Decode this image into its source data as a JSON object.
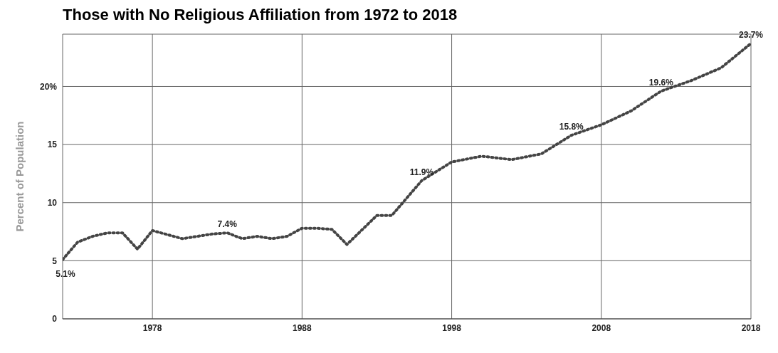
{
  "chart_data": {
    "type": "line",
    "title": "Those with No Religious Affiliation from 1972 to 2018",
    "ylabel": "Percent of Population",
    "x": [
      1972,
      1973,
      1974,
      1975,
      1976,
      1977,
      1978,
      1980,
      1982,
      1983,
      1984,
      1985,
      1986,
      1987,
      1988,
      1989,
      1990,
      1991,
      1993,
      1994,
      1996,
      1998,
      2000,
      2002,
      2004,
      2006,
      2008,
      2010,
      2012,
      2014,
      2016,
      2018
    ],
    "series": [
      {
        "color": "#444444",
        "values": [
          5.1,
          6.6,
          7.1,
          7.4,
          7.4,
          6.0,
          7.6,
          6.9,
          7.3,
          7.4,
          6.9,
          7.1,
          6.9,
          7.1,
          7.8,
          7.8,
          7.7,
          6.4,
          8.9,
          8.9,
          11.9,
          13.5,
          14.0,
          13.7,
          14.2,
          15.8,
          16.7,
          17.9,
          19.6,
          20.5,
          21.6,
          23.7
        ],
        "value_labels": [
          "5.1%",
          null,
          null,
          null,
          null,
          null,
          null,
          null,
          null,
          "7.4%",
          null,
          null,
          null,
          null,
          null,
          null,
          null,
          null,
          null,
          null,
          "11.9%",
          null,
          null,
          null,
          null,
          "15.8%",
          null,
          null,
          "19.6%",
          null,
          null,
          "23.7%"
        ]
      }
    ],
    "xlim": [
      1972,
      2018
    ],
    "xticks": [
      1978,
      1988,
      1998,
      2008,
      2018
    ],
    "ylim": [
      0,
      24.5
    ],
    "yticks": [
      0,
      5,
      10,
      15,
      {
        "value": 20,
        "label": "20%"
      }
    ],
    "grid": true,
    "marker": "none",
    "line_style": "dotted"
  }
}
